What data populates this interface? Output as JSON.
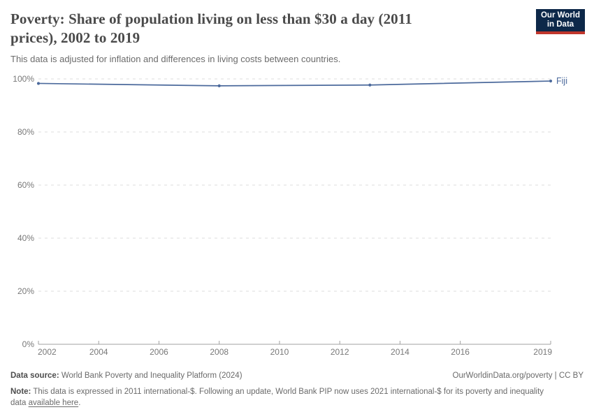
{
  "header": {
    "title_line1": "Poverty: Share of population living on less than $30 a day (2011",
    "title_line2": "prices), 2002 to 2019",
    "subtitle": "This data is adjusted for inflation and differences in living costs between countries."
  },
  "logo": {
    "line1": "Our World",
    "line2": "in Data",
    "bg_color": "#0d2849",
    "accent_color": "#c0362c"
  },
  "chart_data": {
    "type": "line",
    "title": "Poverty: Share of population living on less than $30 a day (2011 prices), 2002 to 2019",
    "x": [
      2002,
      2008,
      2013,
      2019
    ],
    "series": [
      {
        "name": "Fiji",
        "color": "#4c6a9c",
        "values": [
          98.3,
          97.4,
          97.7,
          99.2
        ]
      }
    ],
    "xticks": [
      2002,
      2004,
      2006,
      2008,
      2010,
      2012,
      2014,
      2016,
      2019
    ],
    "yticks": [
      0,
      20,
      40,
      60,
      80,
      100
    ],
    "ytick_suffix": "%",
    "xlim": [
      2002,
      2019
    ],
    "ylim": [
      0,
      100
    ],
    "grid": true,
    "legend": "end-of-line-label",
    "grid_color": "#dcdcdc",
    "axis_color": "#a1a1a1",
    "tick_label_color": "#787878"
  },
  "footer": {
    "datasource_label": "Data source:",
    "datasource_text": " World Bank Poverty and Inequality Platform (2024)",
    "url": "OurWorldinData.org/poverty",
    "license": " | CC BY",
    "note_label": "Note:",
    "note_text": " This data is expressed in 2011 international-$. Following an update, World Bank PIP now uses 2021 international-$ for its poverty and inequality data ",
    "note_link": "available here",
    "note_end": "."
  }
}
